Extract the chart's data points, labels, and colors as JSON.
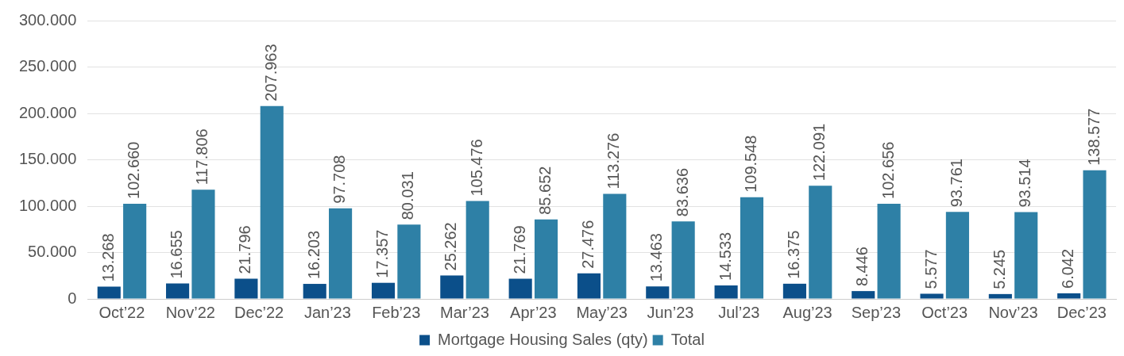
{
  "chart_data": {
    "type": "bar",
    "categories": [
      "Oct’22",
      "Nov’22",
      "Dec’22",
      "Jan’23",
      "Feb’23",
      "Mar’23",
      "Apr’23",
      "May’23",
      "Jun’23",
      "Jul’23",
      "Aug’23",
      "Sep’23",
      "Oct’23",
      "Nov’23",
      "Dec’23"
    ],
    "series": [
      {
        "name": "Mortgage Housing Sales (qty)",
        "color": "#0b4f8a",
        "values": [
          13268,
          16655,
          21796,
          16203,
          17357,
          25262,
          21769,
          27476,
          13463,
          14533,
          16375,
          8446,
          5577,
          5245,
          6042
        ],
        "value_labels": [
          "13.268",
          "16.655",
          "21.796",
          "16.203",
          "17.357",
          "25.262",
          "21.769",
          "27.476",
          "13.463",
          "14.533",
          "16.375",
          "8.446",
          "5.577",
          "5.245",
          "6.042"
        ]
      },
      {
        "name": "Total",
        "color": "#2e80a6",
        "values": [
          102660,
          117806,
          207963,
          97708,
          80031,
          105476,
          85652,
          113276,
          83636,
          109548,
          122091,
          102656,
          93761,
          93514,
          138577
        ],
        "value_labels": [
          "102.660",
          "117.806",
          "207.963",
          "97.708",
          "80.031",
          "105.476",
          "85.652",
          "113.276",
          "83.636",
          "109.548",
          "122.091",
          "102.656",
          "93.761",
          "93.514",
          "138.577"
        ]
      }
    ],
    "ylim": [
      0,
      300000
    ],
    "yticks": [
      0,
      {
        "value": 50000,
        "label": "50.000"
      },
      {
        "value": 100000,
        "label": "100.000"
      },
      {
        "value": 150000,
        "label": "150.000"
      },
      {
        "value": 200000,
        "label": "200.000"
      },
      {
        "value": 250000,
        "label": "250.000"
      },
      {
        "value": 300000,
        "label": "300.000"
      }
    ],
    "grid": "y",
    "legend": "bottom"
  }
}
